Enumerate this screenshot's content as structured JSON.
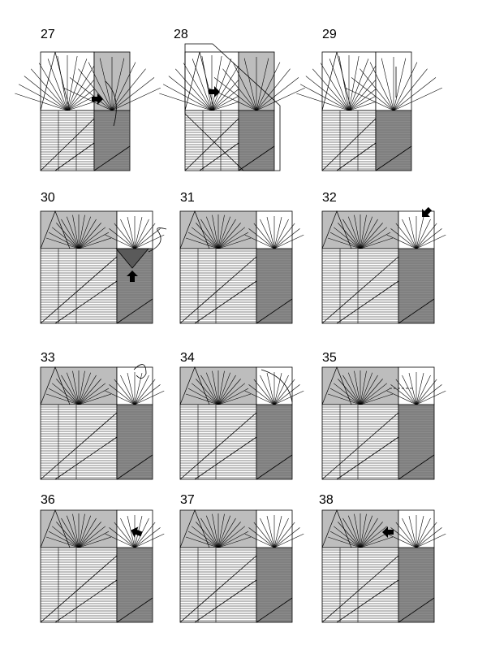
{
  "steps": [
    {
      "number": "27"
    },
    {
      "number": "28"
    },
    {
      "number": "29"
    },
    {
      "number": "30"
    },
    {
      "number": "31"
    },
    {
      "number": "32"
    },
    {
      "number": "33"
    },
    {
      "number": "34"
    },
    {
      "number": "35"
    },
    {
      "number": "36"
    },
    {
      "number": "37"
    },
    {
      "number": "38"
    }
  ],
  "colors": {
    "paper_white": "#ffffff",
    "paper_grey": "#bdbdbd",
    "paper_dark_grey": "#8a8a8a",
    "paper_darkest": "#5a5a5a",
    "line": "#000000"
  },
  "icons": [
    "push-arrow-icon",
    "fold-arrow-icon",
    "turn-over-arrow-icon"
  ]
}
